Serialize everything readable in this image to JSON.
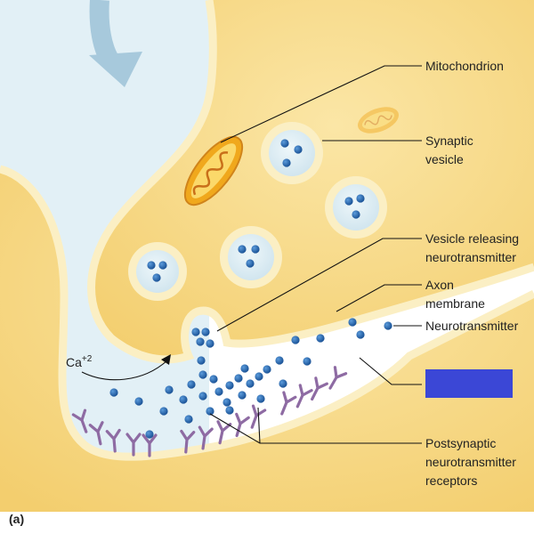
{
  "figure": {
    "panel_label": "(a)",
    "ion_label": {
      "base": "Ca",
      "superscript": "+2"
    }
  },
  "labels": {
    "mitochondrion": "Mitochondrion",
    "synaptic_vesicle": [
      "Synaptic",
      "vesicle"
    ],
    "vesicle_releasing": [
      "Vesicle releasing",
      "neurotransmitter"
    ],
    "axon_membrane": [
      "Axon",
      "membrane"
    ],
    "neurotransmitter": "Neurotransmitter",
    "receptors": [
      "Postsynaptic",
      "neurotransmitter",
      "receptors"
    ]
  },
  "hidden_label_box": {
    "color": "#3B47D6",
    "text": ""
  },
  "colors": {
    "cytoplasm": "#F6D781",
    "membrane": "#FBEFC4",
    "cleft": "#E2F0F6",
    "dot": "#1F5FA8",
    "receptor": "#8E6BA3",
    "mitochondrion": "#F0A81C",
    "arrow": "#A7C9DC"
  }
}
